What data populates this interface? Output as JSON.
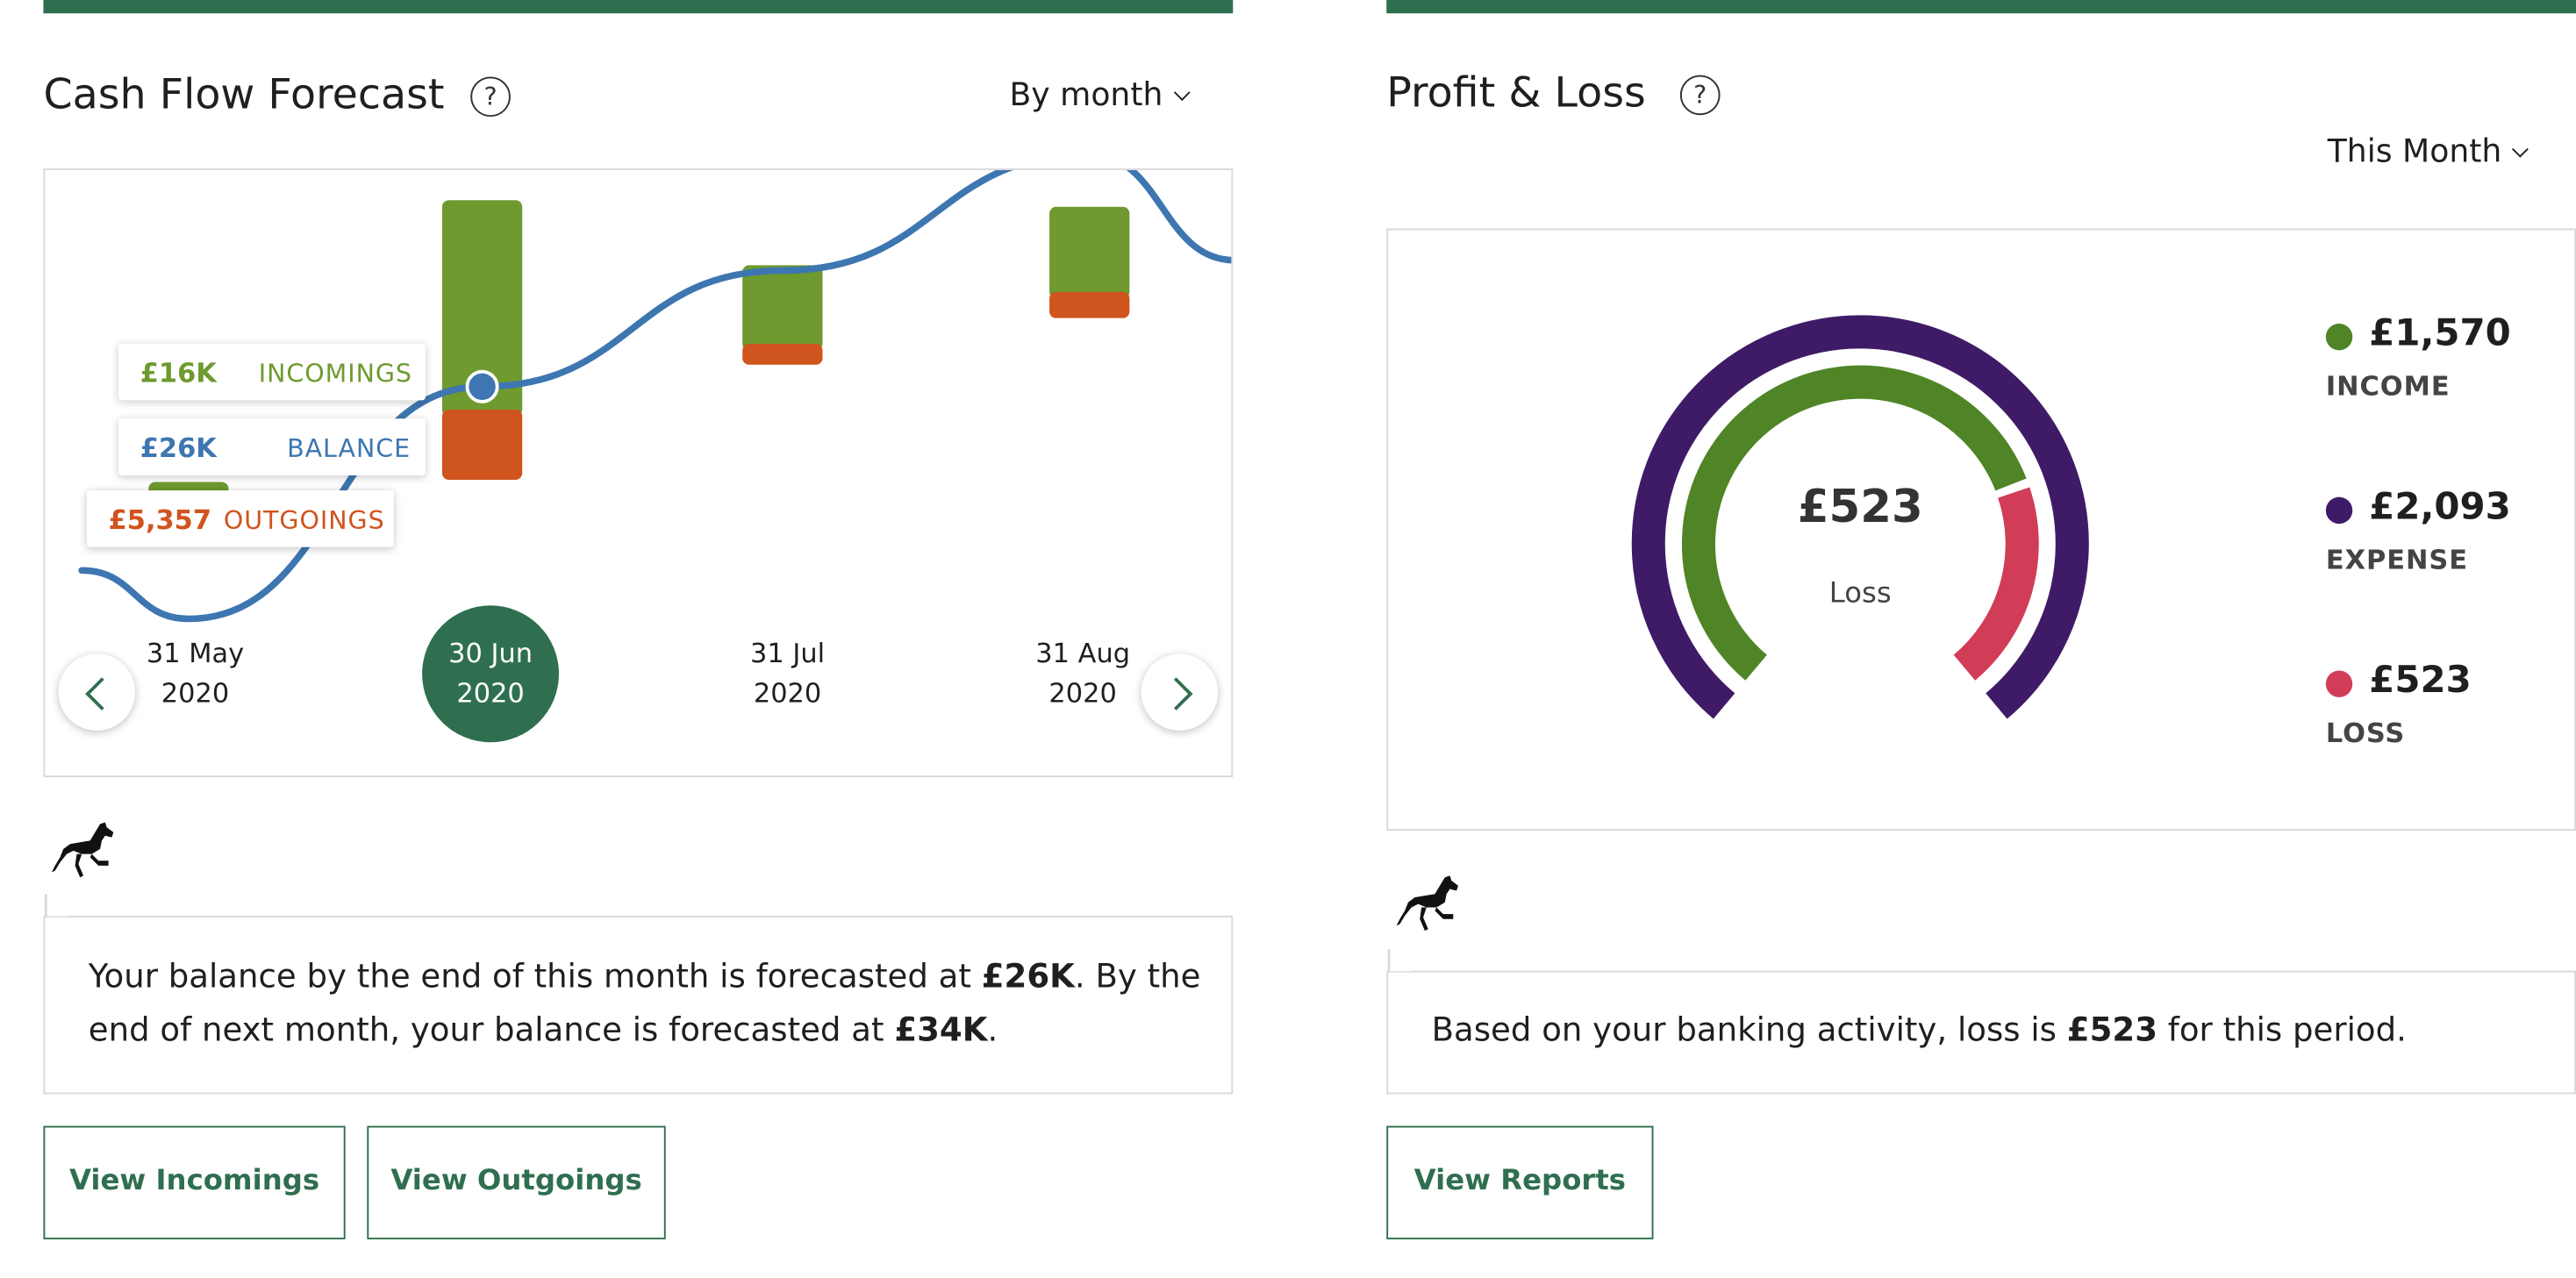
{
  "cash_flow": {
    "title": "Cash Flow Forecast",
    "help": "?",
    "period_selector": "By month",
    "tooltips": {
      "incomings": {
        "value": "£16K",
        "label": "INCOMINGS"
      },
      "balance": {
        "value": "£26K",
        "label": "BALANCE"
      },
      "outgoings": {
        "value": "£5,357",
        "label": "OUTGOINGS"
      }
    },
    "dates": [
      {
        "line1": "31 May",
        "line2": "2020"
      },
      {
        "line1": "30 Jun",
        "line2": "2020"
      },
      {
        "line1": "31 Jul",
        "line2": "2020"
      },
      {
        "line1": "31 Aug",
        "line2": "2020"
      }
    ],
    "selected_index": 1,
    "message": {
      "part1": "Your balance by the end of this month is forecasted at ",
      "bold1": "£26K",
      "part2": ". By the end of next month, your balance is forecasted at ",
      "bold2": "£34K",
      "part3": "."
    },
    "buttons": {
      "incomings": "View Incomings",
      "outgoings": "View Outgoings"
    }
  },
  "chart_data": {
    "type": "bar",
    "categories": [
      "31 May 2020",
      "30 Jun 2020",
      "31 Jul 2020",
      "31 Aug 2020"
    ],
    "series": [
      {
        "name": "INCOMINGS",
        "values": [
          2,
          16,
          6,
          6.5
        ]
      },
      {
        "name": "OUTGOINGS",
        "values": [
          1.5,
          5.357,
          1.6,
          2
        ]
      },
      {
        "name": "BALANCE",
        "values": [
          10,
          26,
          34,
          42
        ]
      }
    ],
    "colors": {
      "incomings": "#6e9a2f",
      "outgoings": "#d0541e",
      "balance": "#3d76b0"
    }
  },
  "profit_loss": {
    "title": "Profit & Loss",
    "help": "?",
    "period_selector": "This Month",
    "center_value": "£523",
    "center_label": "Loss",
    "legend": [
      {
        "amount": "£1,570",
        "label": "INCOME",
        "color": "#4f8526"
      },
      {
        "amount": "£2,093",
        "label": "EXPENSE",
        "color": "#3f1b67"
      },
      {
        "amount": "£523",
        "label": "LOSS",
        "color": "#d13c57"
      }
    ],
    "gauge": {
      "income": 1570,
      "expense": 2093,
      "loss": 523
    },
    "message": {
      "part1": "Based on your banking activity, loss is ",
      "bold1": "£523",
      "part2": " for this period."
    },
    "buttons": {
      "reports": "View Reports"
    }
  },
  "icons": {
    "brand": "black-horse-icon",
    "help": "question-mark-icon",
    "dropdown": "chevron-down-icon",
    "prev": "chevron-left-icon",
    "next": "chevron-right-icon"
  }
}
